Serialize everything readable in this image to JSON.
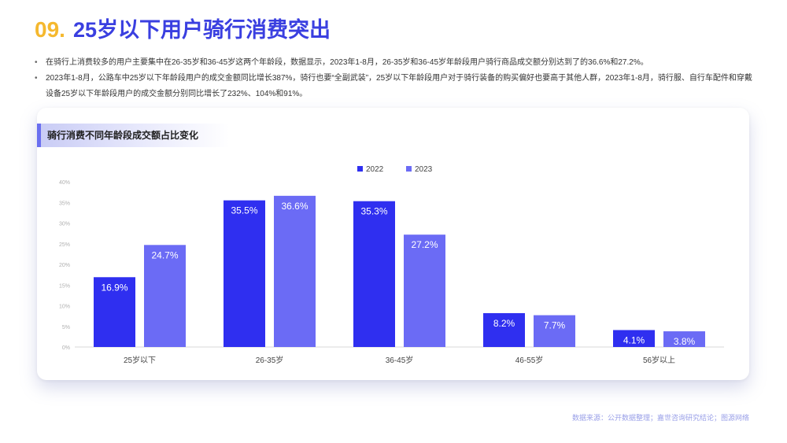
{
  "header": {
    "number": "09.",
    "title": "25岁以下用户骑行消费突出"
  },
  "bullets": [
    "在骑行上消费较多的用户主要集中在26-35岁和36-45岁这两个年龄段，数据显示，2023年1-8月，26-35岁和36-45岁年龄段用户骑行商品成交额分别达到了的36.6%和27.2%。",
    "2023年1-8月，公路车中25岁以下年龄段用户的成交金额同比增长387%，骑行也要“全副武装”，25岁以下年龄段用户对于骑行装备的购买偏好也要高于其他人群，2023年1-8月，骑行服、自行车配件和穿戴设备25岁以下年龄段用户的成交金额分别同比增长了232%、104%和91%。"
  ],
  "card": {
    "title": "骑行消费不同年龄段成交额占比变化"
  },
  "chart_data": {
    "type": "bar",
    "categories": [
      "25岁以下",
      "26-35岁",
      "36-45岁",
      "46-55岁",
      "56岁以上"
    ],
    "series": [
      {
        "name": "2022",
        "values": [
          16.9,
          35.5,
          35.3,
          8.2,
          4.1
        ],
        "labels": [
          "16.9%",
          "35.5%",
          "35.3%",
          "8.2%",
          "4.1%"
        ],
        "color": "#2F2FF0"
      },
      {
        "name": "2023",
        "values": [
          24.7,
          36.6,
          27.2,
          7.7,
          3.8
        ],
        "labels": [
          "24.7%",
          "36.6%",
          "27.2%",
          "7.7%",
          "3.8%"
        ],
        "color": "#6B6BF5"
      }
    ],
    "yticks": [
      "0%",
      "5%",
      "10%",
      "15%",
      "20%",
      "25%",
      "30%",
      "35%",
      "40%"
    ],
    "ylim": [
      0,
      40
    ],
    "legend_position": "top-center",
    "grid": false
  },
  "source": "数据来源：公开数据整理；嘉世咨询研究结论；图源网络"
}
